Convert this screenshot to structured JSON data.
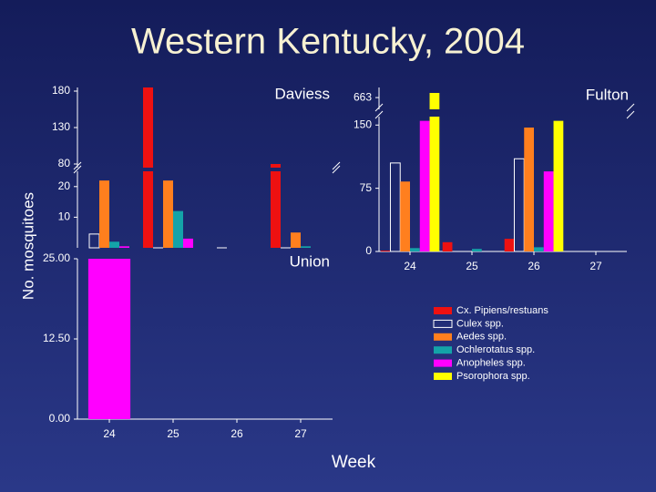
{
  "title": "Western Kentucky, 2004",
  "y_label": "No. mosquitoes",
  "x_label": "Week",
  "chart_data": [
    {
      "type": "bar",
      "title": "Daviess",
      "ylim": [
        0,
        185
      ],
      "axis_break": [
        25,
        75
      ],
      "yticks": [
        10,
        20,
        80,
        130,
        180
      ],
      "series": [
        {
          "name": "Cx. Pipiens/restuans",
          "color": "#ee1111",
          "values": [
            0,
            185,
            0,
            80
          ]
        },
        {
          "name": "Culex spp.",
          "color": "#ffffff",
          "hollow": true,
          "values": [
            4.5,
            0,
            0,
            0
          ]
        },
        {
          "name": "Aedes spp.",
          "color": "#ff7f1e",
          "values": [
            22,
            22,
            0,
            5
          ]
        },
        {
          "name": "Ochlerotatus spp.",
          "color": "#14a3a8",
          "values": [
            2,
            12,
            0,
            0.5
          ]
        },
        {
          "name": "Anopheles spp.",
          "color": "#ff00ff",
          "values": [
            0.5,
            3,
            0,
            0
          ]
        },
        {
          "name": "Psorophora spp.",
          "color": "#ffff00",
          "values": [
            0,
            0,
            0,
            0
          ]
        }
      ]
    },
    {
      "type": "bar",
      "title": "Fulton",
      "categories": [
        "24",
        "25",
        "26",
        "27"
      ],
      "ylim": [
        0,
        700
      ],
      "axis_break": [
        160,
        620
      ],
      "yticks": [
        0,
        75,
        150,
        663
      ],
      "series": [
        {
          "name": "Cx. Pipiens/restuans",
          "color": "#ee1111",
          "values": [
            1,
            11,
            15,
            0
          ]
        },
        {
          "name": "Culex spp.",
          "color": "#ffffff",
          "hollow": true,
          "values": [
            105,
            0,
            110,
            0
          ]
        },
        {
          "name": "Aedes spp.",
          "color": "#ff7f1e",
          "values": [
            83,
            0,
            147,
            0
          ]
        },
        {
          "name": "Ochlerotatus spp.",
          "color": "#14a3a8",
          "values": [
            4,
            3,
            5,
            0
          ]
        },
        {
          "name": "Anopheles spp.",
          "color": "#ff00ff",
          "values": [
            155,
            0,
            95,
            0
          ]
        },
        {
          "name": "Psorophora spp.",
          "color": "#ffff00",
          "values": [
            680,
            0,
            155,
            0
          ]
        }
      ]
    },
    {
      "type": "bar",
      "title": "Union",
      "categories": [
        "24",
        "25",
        "26",
        "27"
      ],
      "ylim": [
        0,
        25
      ],
      "yticks": [
        {
          "value": 0,
          "label": "0.00"
        },
        {
          "value": 12.5,
          "label": "12.50"
        },
        {
          "value": 25,
          "label": "25.00"
        }
      ],
      "series": [
        {
          "name": "Anopheles spp.",
          "color": "#ff00ff",
          "values": [
            25,
            0,
            0,
            0
          ]
        }
      ]
    }
  ]
}
